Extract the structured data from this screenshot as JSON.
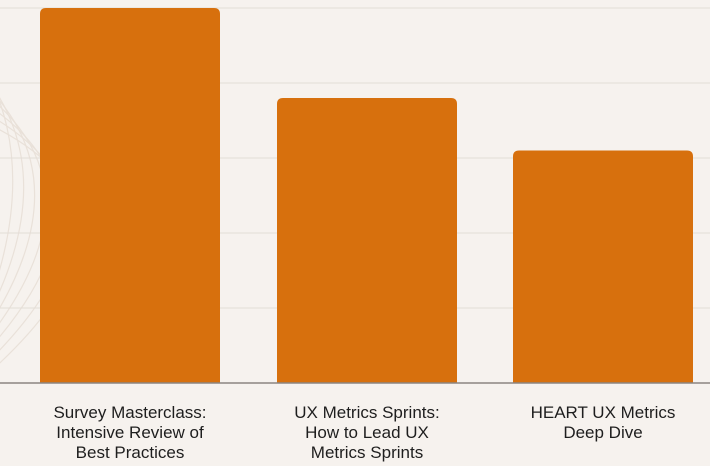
{
  "chart_data": {
    "type": "bar",
    "title": "",
    "xlabel": "",
    "ylabel": "",
    "categories": [
      [
        "Survey Masterclass:",
        "Intensive Review of",
        "Best Practices"
      ],
      [
        "UX Metrics Sprints:",
        "How to Lead UX",
        "Metrics Sprints"
      ],
      [
        "HEART UX Metrics",
        "Deep Dive"
      ]
    ],
    "values": [
      100,
      76,
      62
    ],
    "ylim": [
      0,
      100
    ],
    "grid": true,
    "legend": "none",
    "colors": {
      "bar": "#d7700d",
      "grid": "#e3ddd7",
      "axis": "#8c8580",
      "background": "#f6f2ee",
      "contour": "#e9e1d9"
    }
  }
}
